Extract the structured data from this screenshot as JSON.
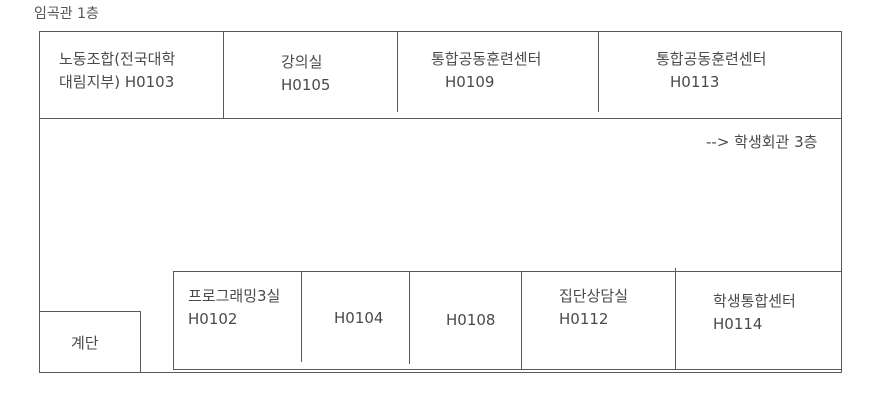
{
  "floor_title": "임곡관 1층",
  "top_rooms": [
    {
      "line1": "노동조합(전국대학",
      "line2": "대림지부) H0103"
    },
    {
      "line1": "강의실",
      "line2": "H0105"
    },
    {
      "line1": "통합공동훈련센터",
      "line2": "H0109"
    },
    {
      "line1": "통합공동훈련센터",
      "line2": "H0113"
    }
  ],
  "arrow_note": "--> 학생회관 3층",
  "stairs": "계단",
  "bottom_rooms": [
    {
      "line1": "프로그래밍3실",
      "line2": "H0102"
    },
    {
      "line1": "",
      "line2": "H0104"
    },
    {
      "line1": "",
      "line2": "H0108"
    },
    {
      "line1": "집단상담실",
      "line2": "H0112"
    },
    {
      "line1": "학생통합센터",
      "line2": "H0114"
    }
  ]
}
